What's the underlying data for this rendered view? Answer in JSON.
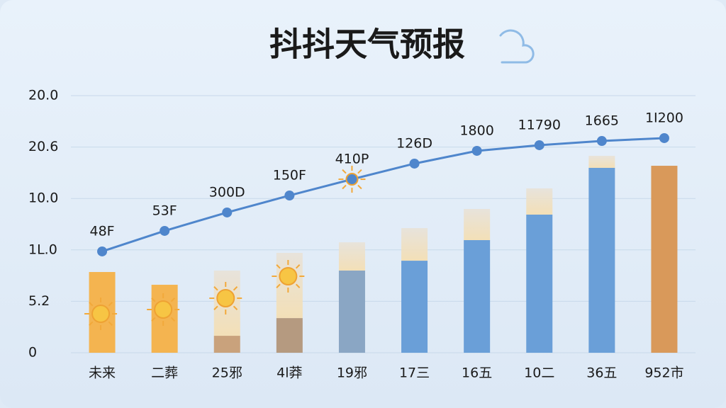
{
  "chart_data": {
    "type": "bar-line",
    "title": "抖抖天气预报",
    "categories": [
      "未来",
      "二葬",
      "25邪",
      "4l莽",
      "19邪",
      "17三",
      "16五",
      "10二",
      "36五",
      "952市"
    ],
    "series": [
      {
        "color": "#f2b24f",
        "colors": [
          "#f4b450",
          "#f4b450",
          "#c9a27c",
          "#b59a80",
          "#8aa6c4",
          "#6a9fd8",
          "#6a9fd8",
          "#6a9fd8",
          "#6a9fd8",
          "#d9995a"
        ],
        "values": [
          7.85,
          6.61,
          1.65,
          3.37,
          7.99,
          8.95,
          10.95,
          13.43,
          17.98,
          18.18
        ]
      },
      {
        "color": "#efe3cf",
        "values": [
          0,
          0,
          6.34,
          6.34,
          2.75,
          3.17,
          3.03,
          2.55,
          1.17,
          0
        ]
      },
      {
        "type": "line",
        "color": "#4f86cc",
        "values": [
          9.85,
          11.85,
          13.64,
          15.29,
          16.87,
          18.39,
          19.63,
          20.18,
          20.59,
          20.87
        ],
        "point_labels": [
          "48F",
          "53F",
          "300D",
          "150F",
          "410P",
          "126D",
          "1800",
          "11790",
          "1665",
          "1I200"
        ]
      }
    ],
    "ylim": [
      0,
      25
    ],
    "yticks": [
      0,
      {
        "value": 5,
        "label": "5.2"
      },
      {
        "value": 10,
        "label": "1L.0"
      },
      {
        "value": 15,
        "label": "10.0"
      },
      {
        "value": 20,
        "label": "20.6"
      },
      {
        "value": 25,
        "label": "20.0"
      }
    ],
    "grid": true
  }
}
